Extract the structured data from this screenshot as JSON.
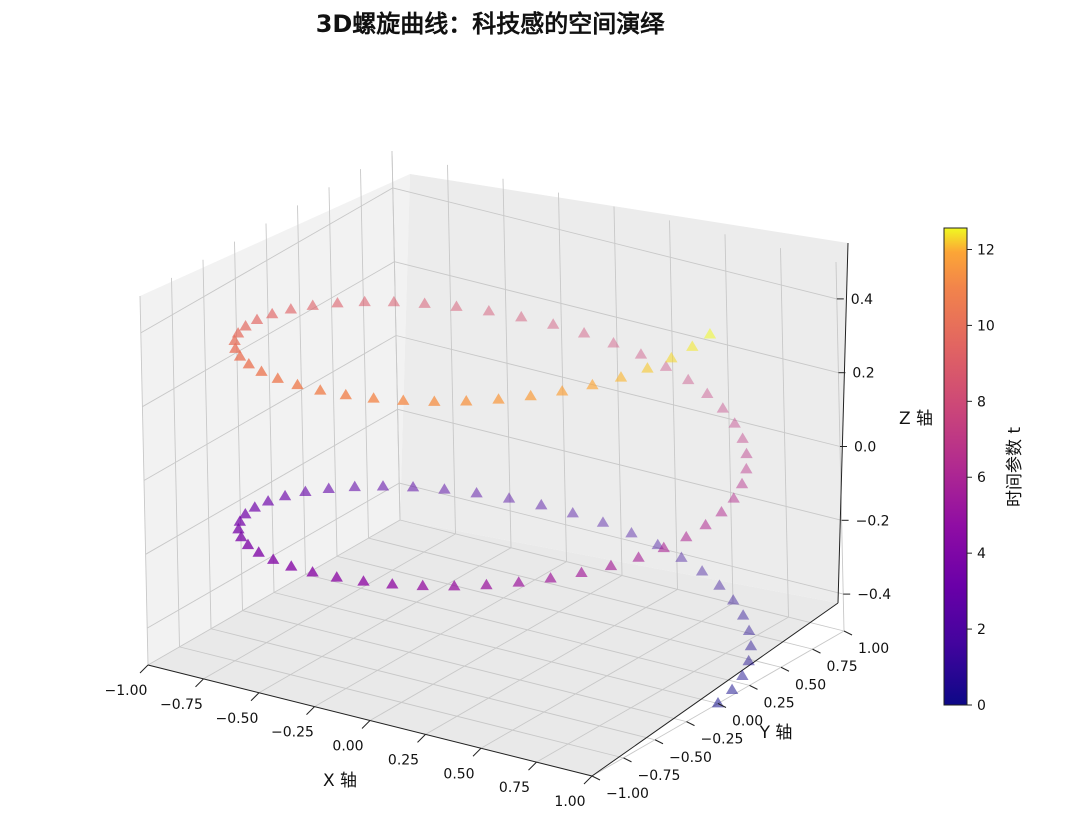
{
  "chart_data": {
    "type": "scatter",
    "projection": "3d",
    "title": "3D螺旋曲线：科技感的空间演绎",
    "xlabel": "X 轴",
    "ylabel": "Y 轴",
    "zlabel": "Z 轴",
    "colorbar_label": "时间参数 t",
    "colormap": "plasma",
    "marker": "triangle-up",
    "alpha_range": [
      0.85,
      0.35
    ],
    "xlim": [
      -1.0,
      1.0
    ],
    "ylim": [
      -1.0,
      1.0
    ],
    "zlim": [
      -0.5,
      0.5
    ],
    "clim": [
      0,
      12.566
    ],
    "x_ticks": [
      "−1.00",
      "−0.75",
      "−0.50",
      "−0.25",
      "0.00",
      "0.25",
      "0.50",
      "0.75",
      "1.00"
    ],
    "y_ticks": [
      "−1.00",
      "−0.75",
      "−0.50",
      "−0.25",
      "0.00",
      "0.25",
      "0.50",
      "0.75",
      "1.00"
    ],
    "z_ticks": [
      "−0.4",
      "−0.2",
      "0.0",
      "0.2",
      "0.4"
    ],
    "colorbar_ticks": [
      "0",
      "2",
      "4",
      "6",
      "8",
      "10",
      "12"
    ],
    "series": [
      {
        "t_range": [
          0,
          12.566
        ],
        "points": 100,
        "x": "cos(t)",
        "y": "sin(t)",
        "z": "-0.5 + t / (4*pi)"
      }
    ],
    "grid": true,
    "colors": {
      "pane": "#f2f2f2",
      "grid": "#c8c8c8"
    }
  }
}
